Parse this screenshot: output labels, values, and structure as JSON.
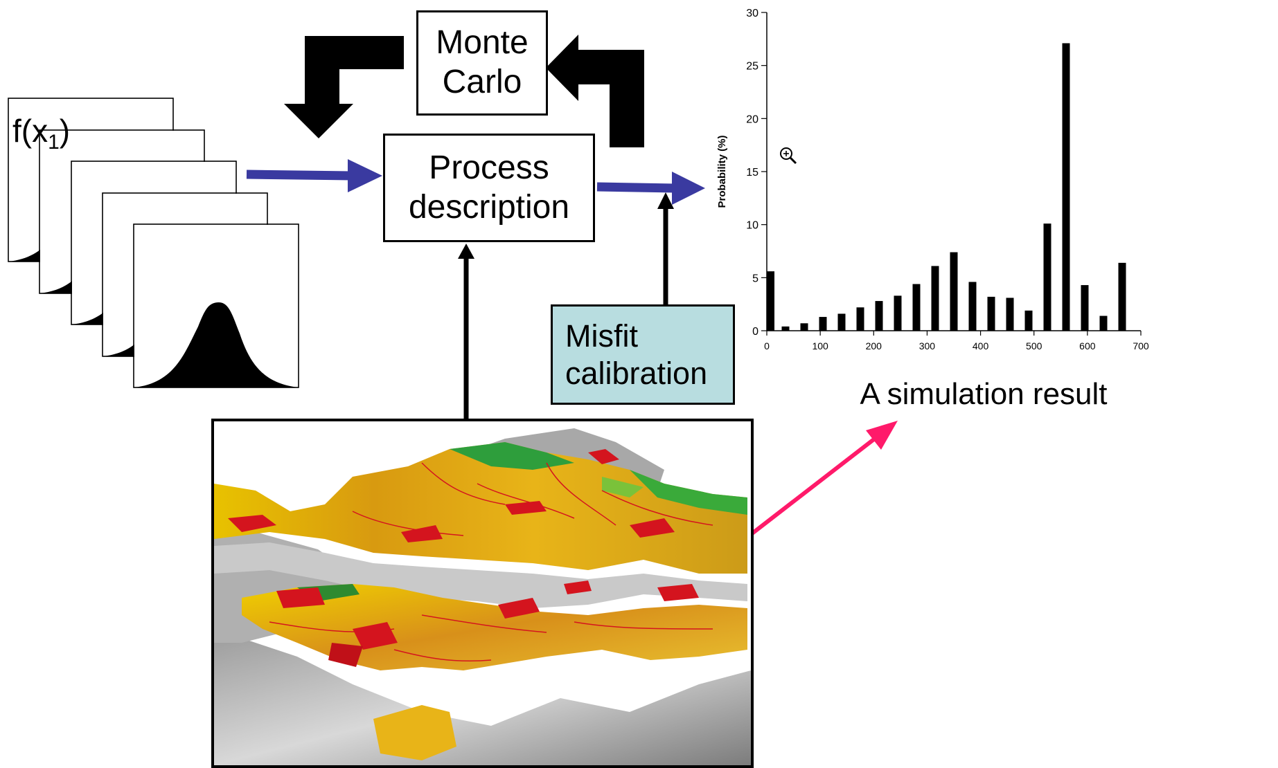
{
  "labels": {
    "monte_line1": "Monte",
    "monte_line2": "Carlo",
    "process_line1": "Process",
    "process_line2": "description",
    "misfit_line1": "Misfit",
    "misfit_line2": "calibration",
    "simulation_caption": "A simulation result",
    "f_prefix": "f(x",
    "f_sub": "1",
    "f_suffix": ")"
  },
  "colors": {
    "flow_arrow": "#3a3aa0",
    "highlight_arrow": "#ff1a6a",
    "misfit_fill": "#b8dde0"
  },
  "chart_data": {
    "type": "bar",
    "ylabel": "Probability (%)",
    "xlabel": "",
    "ylim": [
      0,
      30
    ],
    "xlim": [
      0,
      700
    ],
    "y_ticks": [
      0,
      5,
      10,
      15,
      20,
      25,
      30
    ],
    "x_ticks": [
      0,
      100,
      200,
      300,
      400,
      500,
      600,
      700
    ],
    "x": [
      0,
      35,
      70,
      105,
      140,
      175,
      210,
      245,
      280,
      315,
      350,
      385,
      420,
      455,
      490,
      525,
      560,
      595,
      630,
      665
    ],
    "values": [
      5.6,
      0.4,
      0.7,
      1.3,
      1.6,
      2.2,
      2.8,
      3.3,
      4.4,
      6.1,
      7.4,
      4.6,
      3.2,
      3.1,
      1.9,
      10.1,
      27.1,
      4.3,
      1.4,
      6.4
    ]
  }
}
